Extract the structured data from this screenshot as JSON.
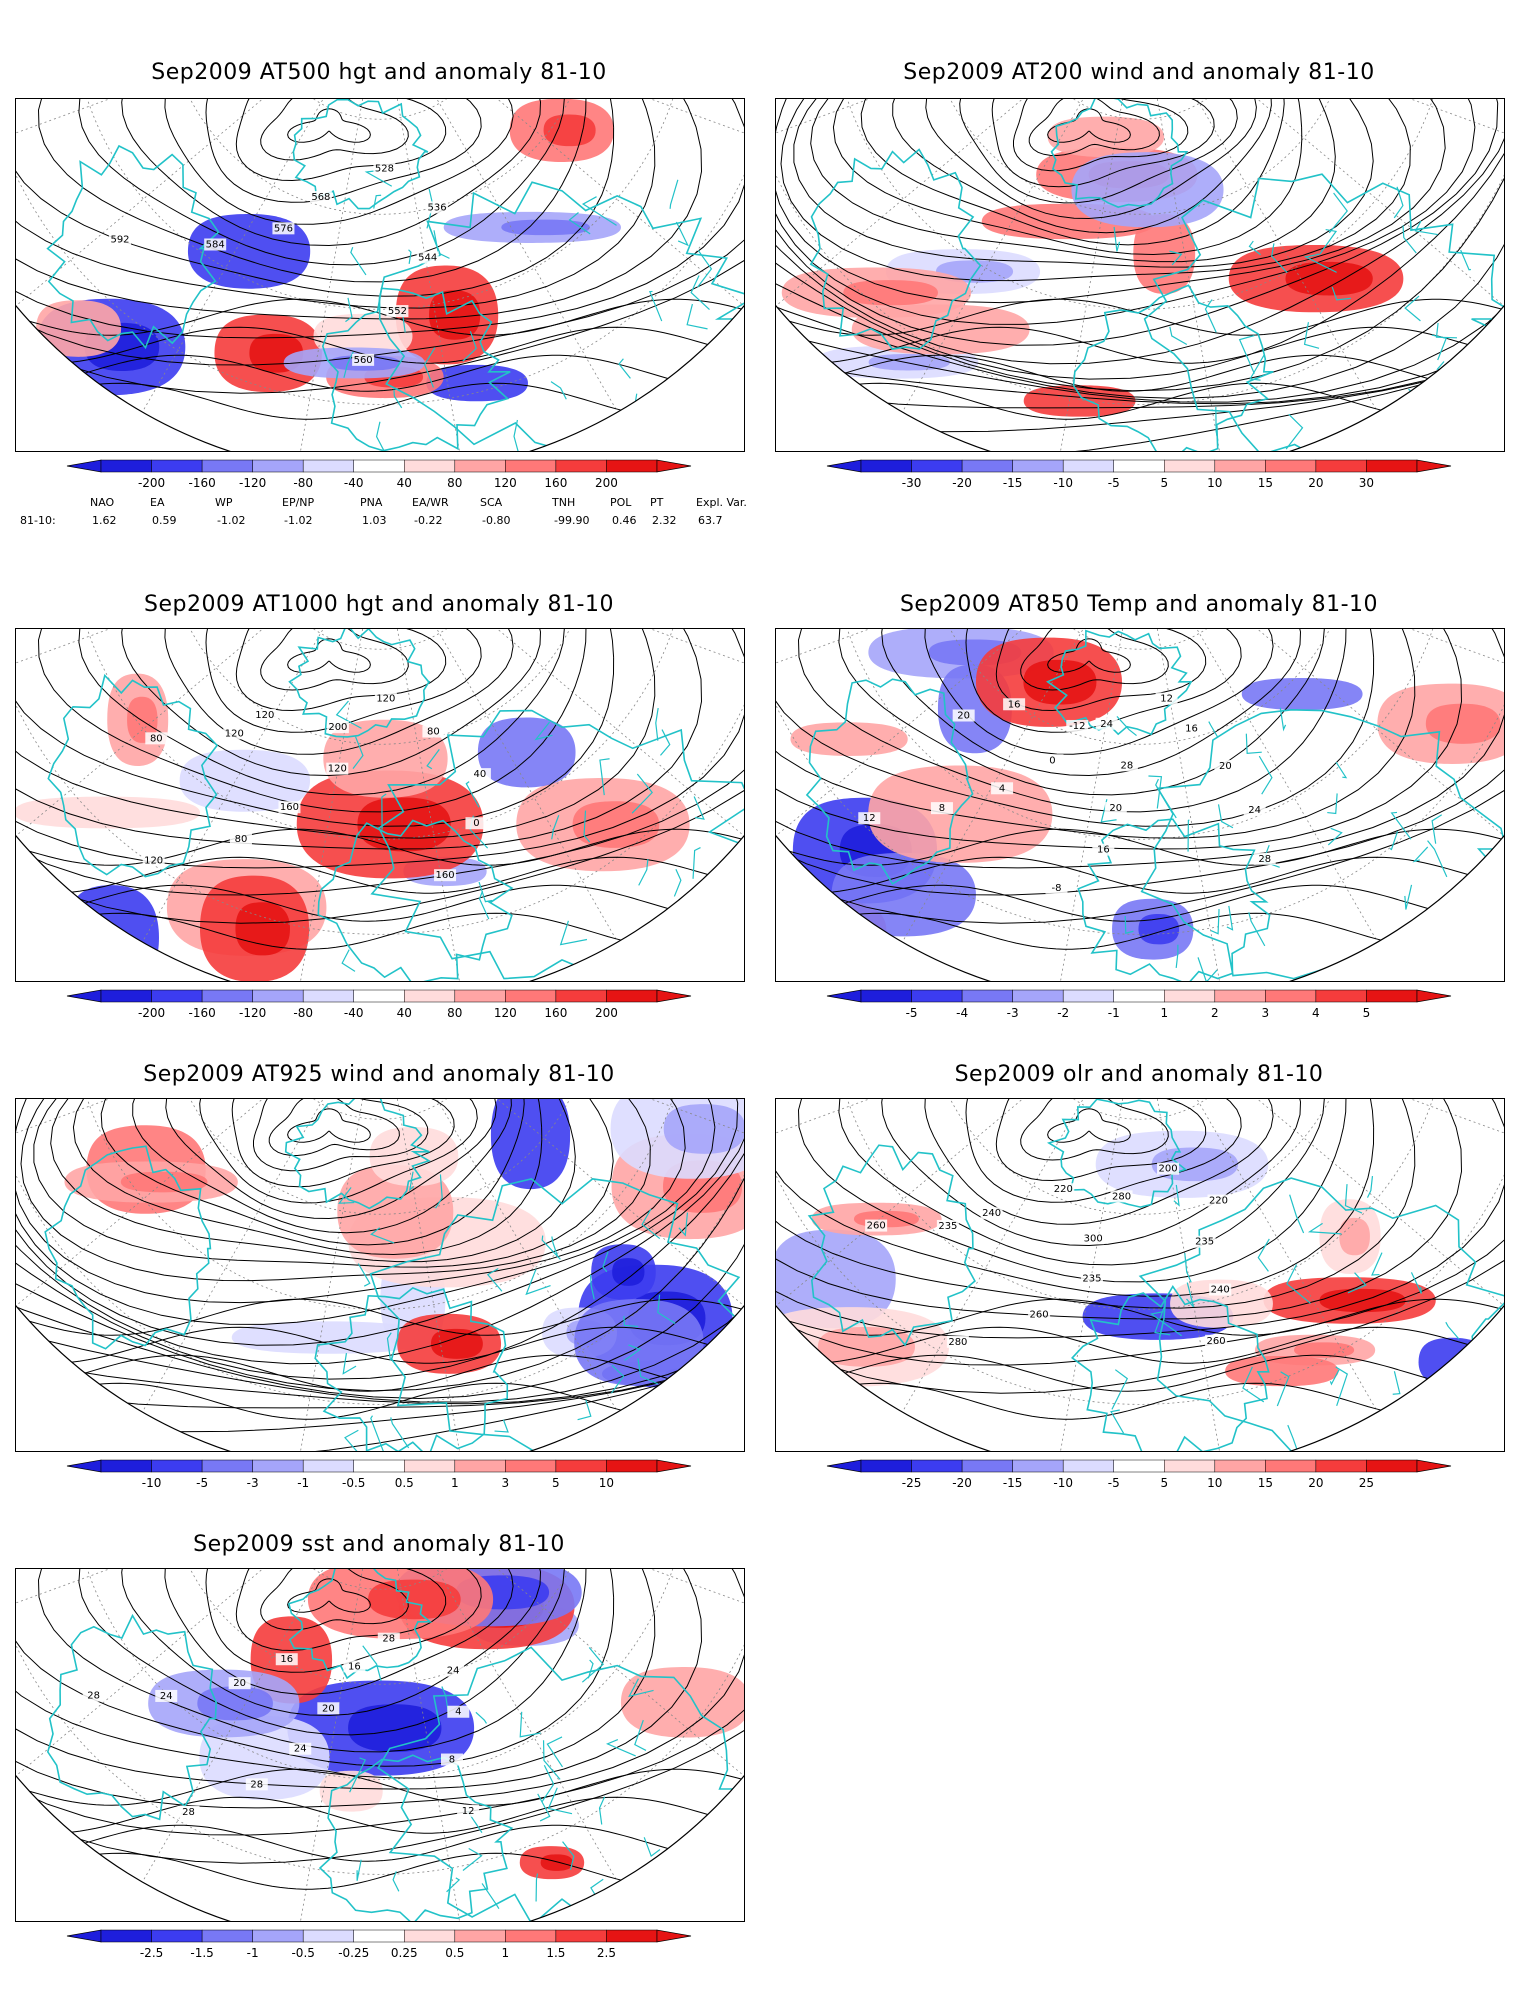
{
  "panels": [
    {
      "id": "at500",
      "title": "Sep2009 AT500 hgt and anomaly 81-10",
      "field": "height",
      "colorbar": [
        "-200",
        "-160",
        "-120",
        "-80",
        "-40",
        "40",
        "80",
        "120",
        "160",
        "200"
      ],
      "contour_labels": [
        "528",
        "536",
        "544",
        "552",
        "560",
        "568",
        "576",
        "584",
        "592"
      ]
    },
    {
      "id": "at200",
      "title": "Sep2009 AT200 wind and anomaly 81-10",
      "field": "wind",
      "colorbar": [
        "-30",
        "-20",
        "-15",
        "-10",
        "-5",
        "5",
        "10",
        "15",
        "20",
        "30"
      ],
      "contour_labels": []
    },
    {
      "id": "at1000",
      "title": "Sep2009 AT1000 hgt and anomaly 81-10",
      "field": "height",
      "colorbar": [
        "-200",
        "-160",
        "-120",
        "-80",
        "-40",
        "40",
        "80",
        "120",
        "160",
        "200"
      ],
      "contour_labels": [
        "120",
        "80",
        "40",
        "0",
        "160",
        "200",
        "120",
        "160",
        "80",
        "120",
        "120",
        "120",
        "80"
      ]
    },
    {
      "id": "at850",
      "title": "Sep2009 AT850 Temp and anomaly 81-10",
      "field": "temp",
      "colorbar": [
        "-5",
        "-4",
        "-3",
        "-2",
        "-1",
        "1",
        "2",
        "3",
        "4",
        "5"
      ],
      "contour_labels": [
        "12",
        "16",
        "20",
        "24",
        "28",
        "24",
        "28",
        "20",
        "16",
        "-8",
        "-12",
        "0",
        "4",
        "8",
        "12",
        "16",
        "20"
      ]
    },
    {
      "id": "at925",
      "title": "Sep2009 AT925 wind and anomaly 81-10",
      "field": "wind",
      "colorbar": [
        "-10",
        "-5",
        "-3",
        "-1",
        "-0.5",
        "0.5",
        "1",
        "3",
        "5",
        "10"
      ],
      "contour_labels": []
    },
    {
      "id": "olr",
      "title": "Sep2009 olr and anomaly 81-10",
      "field": "olr",
      "colorbar": [
        "-25",
        "-20",
        "-15",
        "-10",
        "-5",
        "5",
        "10",
        "15",
        "20",
        "25"
      ],
      "contour_labels": [
        "200",
        "220",
        "235",
        "240",
        "260",
        "280",
        "300",
        "235",
        "260",
        "280",
        "220",
        "240",
        "235",
        "260"
      ]
    },
    {
      "id": "sst",
      "title": "Sep2009 sst and anomaly 81-10",
      "field": "sst",
      "colorbar": [
        "-2.5",
        "-1.5",
        "-1",
        "-0.5",
        "-0.25",
        "0.25",
        "0.5",
        "1",
        "1.5",
        "2.5"
      ],
      "contour_labels": [
        "28",
        "24",
        "4",
        "8",
        "12",
        "16",
        "20",
        "24",
        "28",
        "28",
        "16",
        "20",
        "24",
        "28"
      ]
    }
  ],
  "teleconnection": {
    "headers": [
      "NAO",
      "EA",
      "WP",
      "EP/NP",
      "PNA",
      "EA/WR",
      "SCA",
      "TNH",
      "POL",
      "PT",
      "Expl. Var."
    ],
    "row_label": "81-10:",
    "values": [
      "1.62",
      "0.59",
      "-1.02",
      "-1.02",
      "1.03",
      "-0.22",
      "-0.80",
      "-99.90",
      "0.46",
      "2.32",
      "63.7"
    ]
  },
  "colors": {
    "coast": "#22c2c8",
    "contour": "#000000",
    "grid": "#888888",
    "neg": [
      "#1e1edc",
      "#3c3cf0",
      "#7878f5",
      "#a5a5fa",
      "#dcdcff"
    ],
    "pos": [
      "#ffdcdc",
      "#ffa5a5",
      "#ff7878",
      "#f53c3c",
      "#e61414"
    ]
  }
}
